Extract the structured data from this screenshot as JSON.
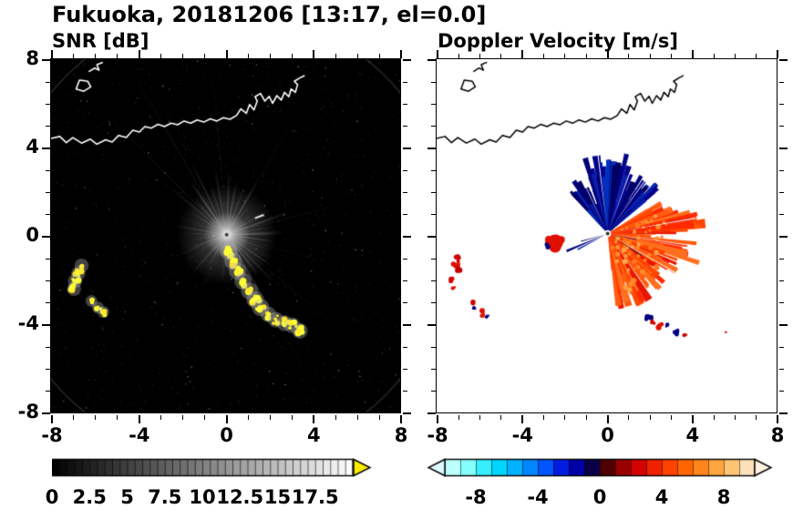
{
  "title": "Fukuoka, 20181206 [13:17, el=0.0]",
  "panels": {
    "snr": {
      "subtitle": "SNR [dB]",
      "xticks": [
        {
          "v": -8,
          "label": "-8"
        },
        {
          "v": -4,
          "label": "-4"
        },
        {
          "v": 0,
          "label": "0"
        },
        {
          "v": 4,
          "label": "4"
        },
        {
          "v": 8,
          "label": "8"
        }
      ],
      "yticks": [
        {
          "v": 8,
          "label": "8"
        },
        {
          "v": 4,
          "label": "4"
        },
        {
          "v": 0,
          "label": "0"
        },
        {
          "v": -4,
          "label": "-4"
        },
        {
          "v": -8,
          "label": "-8"
        }
      ],
      "xrange": [
        -8,
        8
      ],
      "yrange": [
        -8,
        8
      ]
    },
    "velocity": {
      "subtitle": "Doppler Velocity [m/s]",
      "xticks": [
        {
          "v": -8,
          "label": "-8"
        },
        {
          "v": -4,
          "label": "-4"
        },
        {
          "v": 0,
          "label": "0"
        },
        {
          "v": 4,
          "label": "4"
        },
        {
          "v": 8,
          "label": "8"
        }
      ],
      "yticks": [],
      "xrange": [
        -8,
        8
      ],
      "yrange": [
        -8,
        8
      ]
    }
  },
  "colorbars": {
    "snr": {
      "range": [
        0,
        20
      ],
      "ticks": [
        {
          "v": 0,
          "label": "0"
        },
        {
          "v": 2.5,
          "label": "2.5"
        },
        {
          "v": 5,
          "label": "5"
        },
        {
          "v": 7.5,
          "label": "7.5"
        },
        {
          "v": 10,
          "label": "10"
        },
        {
          "v": 12.5,
          "label": "12.5"
        },
        {
          "v": 15,
          "label": "15"
        },
        {
          "v": 17.5,
          "label": "17.5"
        }
      ],
      "colormap": "grayscale",
      "over_color": "#ffec00"
    },
    "velocity": {
      "range": [
        -10,
        10
      ],
      "ticks": [
        {
          "v": -8,
          "label": "-8"
        },
        {
          "v": -4,
          "label": "-4"
        },
        {
          "v": 0,
          "label": "0"
        },
        {
          "v": 4,
          "label": "4"
        },
        {
          "v": 8,
          "label": "8"
        }
      ],
      "colormap": "cyan-blue-black-red-orange",
      "under_color": "#ddfaff",
      "over_color": "#fff2e0"
    }
  },
  "chart_data": [
    {
      "type": "heatmap",
      "title": "SNR [dB]",
      "xlim": [
        -8,
        8
      ],
      "ylim": [
        -8,
        8
      ],
      "colormap": "grayscale 0-20 dB, above-scale color yellow",
      "colorbar_ticks": [
        0,
        2.5,
        5,
        7.5,
        10,
        12.5,
        15,
        17.5
      ],
      "background": "black (near 0 dB noise) with faint speckle and faint range ring near corners",
      "features": [
        {
          "name": "radar-site",
          "x": 0,
          "y": 0,
          "note": "bright white center with gray radial clutter streaks in all azimuths, brightest toward NW, N, NE, E and SE; a few black shadow rays toward SSE and SW"
        },
        {
          "name": "high-snr-echo-arc",
          "note": "yellow (>20 dB) arc of cells from (0.2,-0.7) curving through (1.3,-2.9) to (3.4,-4.3)"
        },
        {
          "name": "high-snr-patches-west",
          "note": "yellow patches near (-6.6,-1.4) to (-7.0,-2.4) and (-6.1,-3.0) to (-5.6,-3.5)"
        },
        {
          "name": "coastline",
          "note": "white coastline across the top of the map (y ~ 4.2 to 7.3) with harbor structures near x 0.7-3.6 and a small island near (-6.5,6.9)"
        }
      ]
    },
    {
      "type": "heatmap",
      "title": "Doppler Velocity [m/s]",
      "xlim": [
        -8,
        8
      ],
      "ylim": [
        -8,
        8
      ],
      "colormap": "pale-cyan to blue to near-black (negative), dark-red to orange to pale (positive)",
      "colorbar_ticks": [
        -8,
        -4,
        0,
        4,
        8
      ],
      "background": "white (no echo)",
      "features": [
        {
          "name": "approaching-echo",
          "note": "dark blue fan (about -4 to -8 m/s) north of radar, azimuths ~40-130 deg, radius 1-3.5; narrow navy wedge toward SW"
        },
        {
          "name": "receding-echo",
          "note": "red-orange fan (about +2 to +6 m/s) east to south of radar, azimuths ~-80 to +30 deg, radius up to 4.3, spiky edges"
        },
        {
          "name": "isolated-cell",
          "note": "small red cell with navy spot near (-2.5,-0.4)"
        },
        {
          "name": "scattered-cells-west",
          "note": "small red/blue cells near (-7,-1) to (-7.2,-2.3) and (-6.3,-3.1) to (-5.6,-3.7)"
        },
        {
          "name": "scattered-cells-southeast",
          "note": "small red/blue cells from (1.9,-3.7) to (3.7,-4.5), lone red dot near (5.6,-4.4)"
        },
        {
          "name": "coastline",
          "note": "same coastline as SNR panel drawn in black"
        }
      ]
    }
  ]
}
